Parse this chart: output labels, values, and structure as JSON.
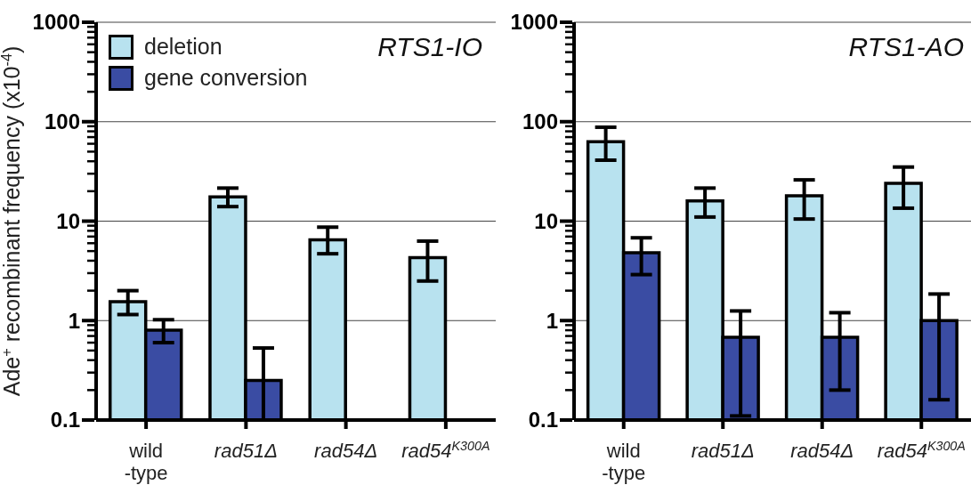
{
  "chart_data": [
    {
      "type": "bar",
      "title": "RTS1-IO",
      "ylabel": "Ade$^{+}$ recombinant frequency (x10$^{-4}$)",
      "categories": [
        "wild\n-type",
        "rad51Δ",
        "rad54Δ",
        "rad54$^{K300A}$"
      ],
      "series": [
        {
          "name": "deletion",
          "color": "#b8e2ef",
          "values": [
            1.55,
            17.5,
            6.5,
            4.3
          ],
          "errors": [
            [
              1.15,
              2.0
            ],
            [
              14,
              21.5
            ],
            [
              4.7,
              8.7
            ],
            [
              2.5,
              6.3
            ]
          ]
        },
        {
          "name": "gene conversion",
          "color": "#3a4ca3",
          "values": [
            0.8,
            0.25,
            null,
            null
          ],
          "errors": [
            [
              0.6,
              1.02
            ],
            [
              0.1,
              0.53
            ],
            null,
            null
          ]
        }
      ],
      "log": true,
      "ylim": [
        0.1,
        1000
      ],
      "yticks": [
        0.1,
        {
          "value": 0.2,
          "label": null
        },
        {
          "value": 0.3,
          "label": null
        },
        {
          "value": 0.4,
          "label": null
        },
        {
          "value": 0.5,
          "label": null
        },
        {
          "value": 0.6,
          "label": null
        },
        {
          "value": 0.7,
          "label": null
        },
        {
          "value": 0.8,
          "label": null
        },
        {
          "value": 0.9,
          "label": null
        },
        1,
        {
          "value": 2,
          "label": null
        },
        {
          "value": 3,
          "label": null
        },
        {
          "value": 4,
          "label": null
        },
        {
          "value": 5,
          "label": null
        },
        {
          "value": 6,
          "label": null
        },
        {
          "value": 7,
          "label": null
        },
        {
          "value": 8,
          "label": null
        },
        {
          "value": 9,
          "label": null
        },
        10,
        {
          "value": 20,
          "label": null
        },
        {
          "value": 30,
          "label": null
        },
        {
          "value": 40,
          "label": null
        },
        {
          "value": 50,
          "label": null
        },
        {
          "value": 60,
          "label": null
        },
        {
          "value": 70,
          "label": null
        },
        {
          "value": 80,
          "label": null
        },
        {
          "value": 90,
          "label": null
        },
        100,
        {
          "value": 200,
          "label": null
        },
        {
          "value": 300,
          "label": null
        },
        {
          "value": 400,
          "label": null
        },
        {
          "value": 500,
          "label": null
        },
        {
          "value": 600,
          "label": null
        },
        {
          "value": 700,
          "label": null
        },
        {
          "value": 800,
          "label": null
        },
        {
          "value": 900,
          "label": null
        },
        1000
      ],
      "grid": "y",
      "legend": "top left"
    },
    {
      "type": "bar",
      "title": "RTS1-AO",
      "categories": [
        "wild\n-type",
        "rad51Δ",
        "rad54Δ",
        "rad54$^{K300A}$"
      ],
      "series": [
        {
          "color": "#b8e2ef",
          "values": [
            63,
            16,
            18,
            24
          ],
          "errors": [
            [
              41,
              88
            ],
            [
              11,
              21.5
            ],
            [
              10.5,
              26
            ],
            [
              13.5,
              35
            ]
          ]
        },
        {
          "color": "#3a4ca3",
          "values": [
            4.8,
            0.68,
            0.68,
            1.0
          ],
          "errors": [
            [
              2.9,
              6.8
            ],
            [
              0.11,
              1.25
            ],
            [
              0.2,
              1.2
            ],
            [
              0.16,
              1.85
            ]
          ]
        }
      ],
      "log": true,
      "ylim": [
        0.1,
        1000
      ],
      "yticks": [
        0.1,
        {
          "value": 0.2,
          "label": null
        },
        {
          "value": 0.3,
          "label": null
        },
        {
          "value": 0.4,
          "label": null
        },
        {
          "value": 0.5,
          "label": null
        },
        {
          "value": 0.6,
          "label": null
        },
        {
          "value": 0.7,
          "label": null
        },
        {
          "value": 0.8,
          "label": null
        },
        {
          "value": 0.9,
          "label": null
        },
        1,
        {
          "value": 2,
          "label": null
        },
        {
          "value": 3,
          "label": null
        },
        {
          "value": 4,
          "label": null
        },
        {
          "value": 5,
          "label": null
        },
        {
          "value": 6,
          "label": null
        },
        {
          "value": 7,
          "label": null
        },
        {
          "value": 8,
          "label": null
        },
        {
          "value": 9,
          "label": null
        },
        10,
        {
          "value": 20,
          "label": null
        },
        {
          "value": 30,
          "label": null
        },
        {
          "value": 40,
          "label": null
        },
        {
          "value": 50,
          "label": null
        },
        {
          "value": 60,
          "label": null
        },
        {
          "value": 70,
          "label": null
        },
        {
          "value": 80,
          "label": null
        },
        {
          "value": 90,
          "label": null
        },
        100,
        {
          "value": 200,
          "label": null
        },
        {
          "value": 300,
          "label": null
        },
        {
          "value": 400,
          "label": null
        },
        {
          "value": 500,
          "label": null
        },
        {
          "value": 600,
          "label": null
        },
        {
          "value": 700,
          "label": null
        },
        {
          "value": 800,
          "label": null
        },
        {
          "value": 900,
          "label": null
        },
        1000
      ],
      "grid": "y",
      "legend": false
    }
  ]
}
